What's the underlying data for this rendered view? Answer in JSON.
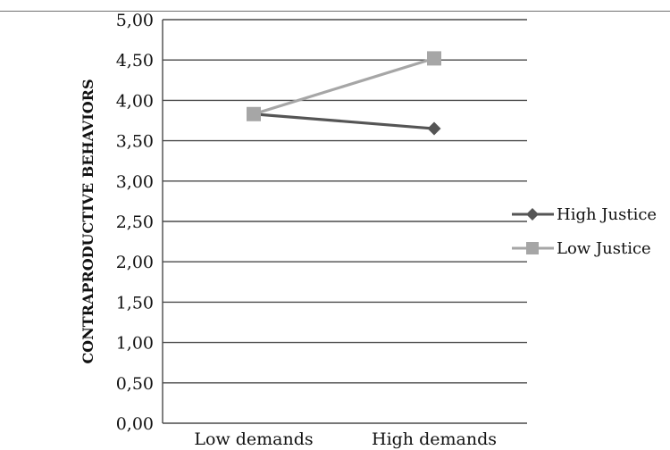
{
  "chart_data": {
    "type": "line",
    "ylabel": "CONTRAPRODUCTIVE BEHAVIORS",
    "categories": [
      "Low demands",
      "High demands"
    ],
    "y_ticks": [
      "0,00",
      "0,50",
      "1,00",
      "1,50",
      "2,00",
      "2,50",
      "3,00",
      "3,50",
      "4,00",
      "4,50",
      "5,00"
    ],
    "ylim": [
      0,
      5
    ],
    "grid": true,
    "legend_position": "right",
    "series": [
      {
        "name": "High Justice",
        "values": [
          3.83,
          3.65
        ],
        "color": "#555555",
        "marker": "diamond"
      },
      {
        "name": "Low Justice",
        "values": [
          3.83,
          4.52
        ],
        "color": "#a6a6a6",
        "marker": "square"
      }
    ]
  }
}
